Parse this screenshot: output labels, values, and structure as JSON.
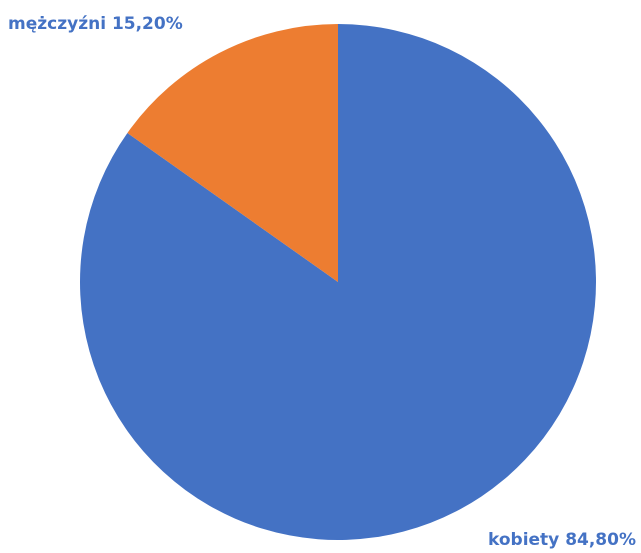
{
  "chart_data": {
    "type": "pie",
    "categories": [
      "kobiety",
      "mężczyźni"
    ],
    "values": [
      84.8,
      15.2
    ],
    "value_labels": [
      "84,80%",
      "15,20%"
    ],
    "colors": [
      "#4472c4",
      "#ed7d31"
    ]
  }
}
